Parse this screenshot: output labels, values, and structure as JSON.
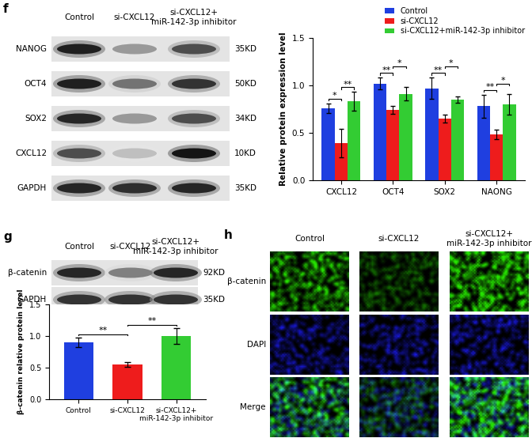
{
  "blots": [
    {
      "panel": "f",
      "lanes": [
        "Control",
        "si-CXCL12",
        "si-CXCL12+\nmiR-142-3p inhibitor"
      ],
      "rows": [
        {
          "protein": "NANOG",
          "size": "35KD"
        },
        {
          "protein": "OCT4",
          "size": "50KD"
        },
        {
          "protein": "SOX2",
          "size": "34KD"
        },
        {
          "protein": "CXCL12",
          "size": "10KD"
        },
        {
          "protein": "GAPDH",
          "size": "35KD"
        }
      ]
    },
    {
      "panel": "g",
      "lanes": [
        "Control",
        "si-CXCL12",
        "si-CXCL12+\nmiR-142-3p inhibitor"
      ],
      "rows": [
        {
          "protein": "β-catenin",
          "size": "92KD"
        },
        {
          "protein": "GAPDH",
          "size": "35KD"
        }
      ]
    }
  ],
  "chart_data": [
    {
      "type": "bar",
      "ylabel": "Relative protein expression level",
      "categories": [
        "CXCL12",
        "OCT4",
        "SOX2",
        "NAONG"
      ],
      "series": [
        {
          "name": "Control",
          "color": "#1f3fe0",
          "values": [
            0.76,
            1.02,
            0.97,
            0.78
          ],
          "errors": [
            0.05,
            0.06,
            0.11,
            0.12
          ]
        },
        {
          "name": "si-CXCL12",
          "color": "#ee1c1c",
          "values": [
            0.39,
            0.74,
            0.65,
            0.48
          ],
          "errors": [
            0.15,
            0.04,
            0.04,
            0.05
          ]
        },
        {
          "name": "si-CXCL12+miR-142-3p inhibitor",
          "color": "#33cc33",
          "values": [
            0.83,
            0.91,
            0.85,
            0.8
          ],
          "errors": [
            0.1,
            0.07,
            0.03,
            0.11
          ]
        }
      ],
      "ylim": [
        0,
        1.5
      ],
      "yticks": [
        0.0,
        0.5,
        1.0,
        1.5
      ],
      "legend": "upper right",
      "significance": [
        {
          "category": "CXCL12",
          "between": [
            "Control",
            "si-CXCL12"
          ],
          "label": "*"
        },
        {
          "category": "CXCL12",
          "between": [
            "si-CXCL12",
            "si-CXCL12+miR-142-3p inhibitor"
          ],
          "label": "**"
        },
        {
          "category": "OCT4",
          "between": [
            "Control",
            "si-CXCL12"
          ],
          "label": "**"
        },
        {
          "category": "OCT4",
          "between": [
            "si-CXCL12",
            "si-CXCL12+miR-142-3p inhibitor"
          ],
          "label": "*"
        },
        {
          "category": "SOX2",
          "between": [
            "Control",
            "si-CXCL12"
          ],
          "label": "**"
        },
        {
          "category": "SOX2",
          "between": [
            "si-CXCL12",
            "si-CXCL12+miR-142-3p inhibitor"
          ],
          "label": "*"
        },
        {
          "category": "NAONG",
          "between": [
            "Control",
            "si-CXCL12"
          ],
          "label": "**"
        },
        {
          "category": "NAONG",
          "between": [
            "si-CXCL12",
            "si-CXCL12+miR-142-3p inhibitor"
          ],
          "label": "*"
        }
      ]
    },
    {
      "type": "bar",
      "ylabel": "β-catenin relative protein level",
      "categories": [
        "Control",
        "si-CXCL12",
        "si-CXCL12+\nmiR-142-3p inhibitor"
      ],
      "values": [
        0.9,
        0.55,
        1.0
      ],
      "errors": [
        0.08,
        0.04,
        0.13
      ],
      "colors": [
        "#1f3fe0",
        "#ee1c1c",
        "#33cc33"
      ],
      "ylim": [
        0,
        1.5
      ],
      "yticks": [
        0.0,
        0.5,
        1.0,
        1.5
      ],
      "significance": [
        {
          "between": [
            "Control",
            "si-CXCL12"
          ],
          "label": "**"
        },
        {
          "between": [
            "si-CXCL12",
            "si-CXCL12+\nmiR-142-3p inhibitor"
          ],
          "label": "**"
        }
      ]
    }
  ],
  "images": {
    "panel": "h",
    "columns": [
      "Control",
      "si-CXCL12",
      "si-CXCL12+\nmiR-142-3p inhibitor"
    ],
    "rows": [
      "β-catenin",
      "DAPI",
      "Merge"
    ]
  }
}
